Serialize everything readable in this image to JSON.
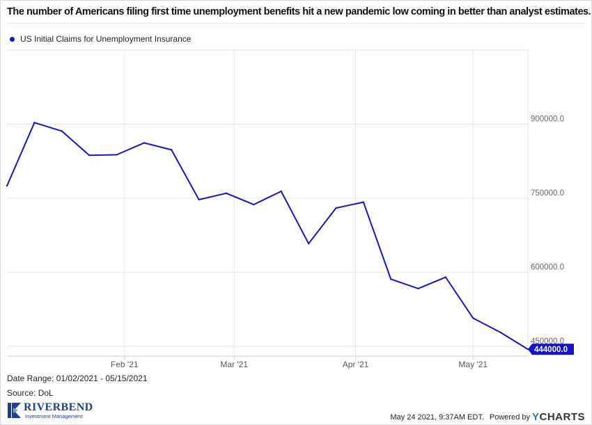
{
  "header": {
    "title": "The number of Americans filing first time unemployment benefits hit a new pandemic low coming in better than analyst estimates."
  },
  "legend": {
    "series_name": "US Initial Claims for Unemployment Insurance",
    "color": "#1414c8"
  },
  "chart_data": {
    "type": "line",
    "title": "The number of Americans filing first time unemployment benefits hit a new pandemic low coming in better than analyst estimates.",
    "xlabel": "",
    "ylabel": "",
    "x": [
      "2021-01-02",
      "2021-01-09",
      "2021-01-16",
      "2021-01-23",
      "2021-01-30",
      "2021-02-06",
      "2021-02-13",
      "2021-02-20",
      "2021-02-27",
      "2021-03-06",
      "2021-03-13",
      "2021-03-20",
      "2021-03-27",
      "2021-04-03",
      "2021-04-10",
      "2021-04-17",
      "2021-04-24",
      "2021-05-01",
      "2021-05-08",
      "2021-05-15"
    ],
    "series": [
      {
        "name": "US Initial Claims for Unemployment Insurance",
        "color": "#1414c8",
        "values": [
          775000,
          903000,
          886000,
          837000,
          838000,
          862000,
          848000,
          747000,
          760000,
          737000,
          764000,
          658000,
          730000,
          742000,
          586000,
          567000,
          590000,
          507000,
          478000,
          444000
        ]
      }
    ],
    "x_tick_labels": [
      "Feb '21",
      "Mar '21",
      "Apr '21",
      "May '21"
    ],
    "x_tick_dates": [
      "2021-02-01",
      "2021-03-01",
      "2021-04-01",
      "2021-05-01"
    ],
    "y_ticks": [
      450000,
      600000,
      750000,
      900000
    ],
    "y_tick_labels": [
      "450000.0",
      "600000.0",
      "750000.0",
      "900000.0"
    ],
    "ylim": [
      430000,
      1050000
    ],
    "y_axis_position": "right",
    "grid": true,
    "last_value_label": "444000.0",
    "last_value_color": "#1414c8"
  },
  "footer": {
    "date_range": "Date Range: 01/02/2021 - 05/15/2021",
    "source": "Source: DoL",
    "timestamp": "May 24 2021, 9:37AM EDT.",
    "powered_by": "Powered by",
    "brand_y": "Y",
    "brand_rest": "CHARTS"
  },
  "logo": {
    "name": "RIVERBEND",
    "subtitle": "Investment Management"
  }
}
